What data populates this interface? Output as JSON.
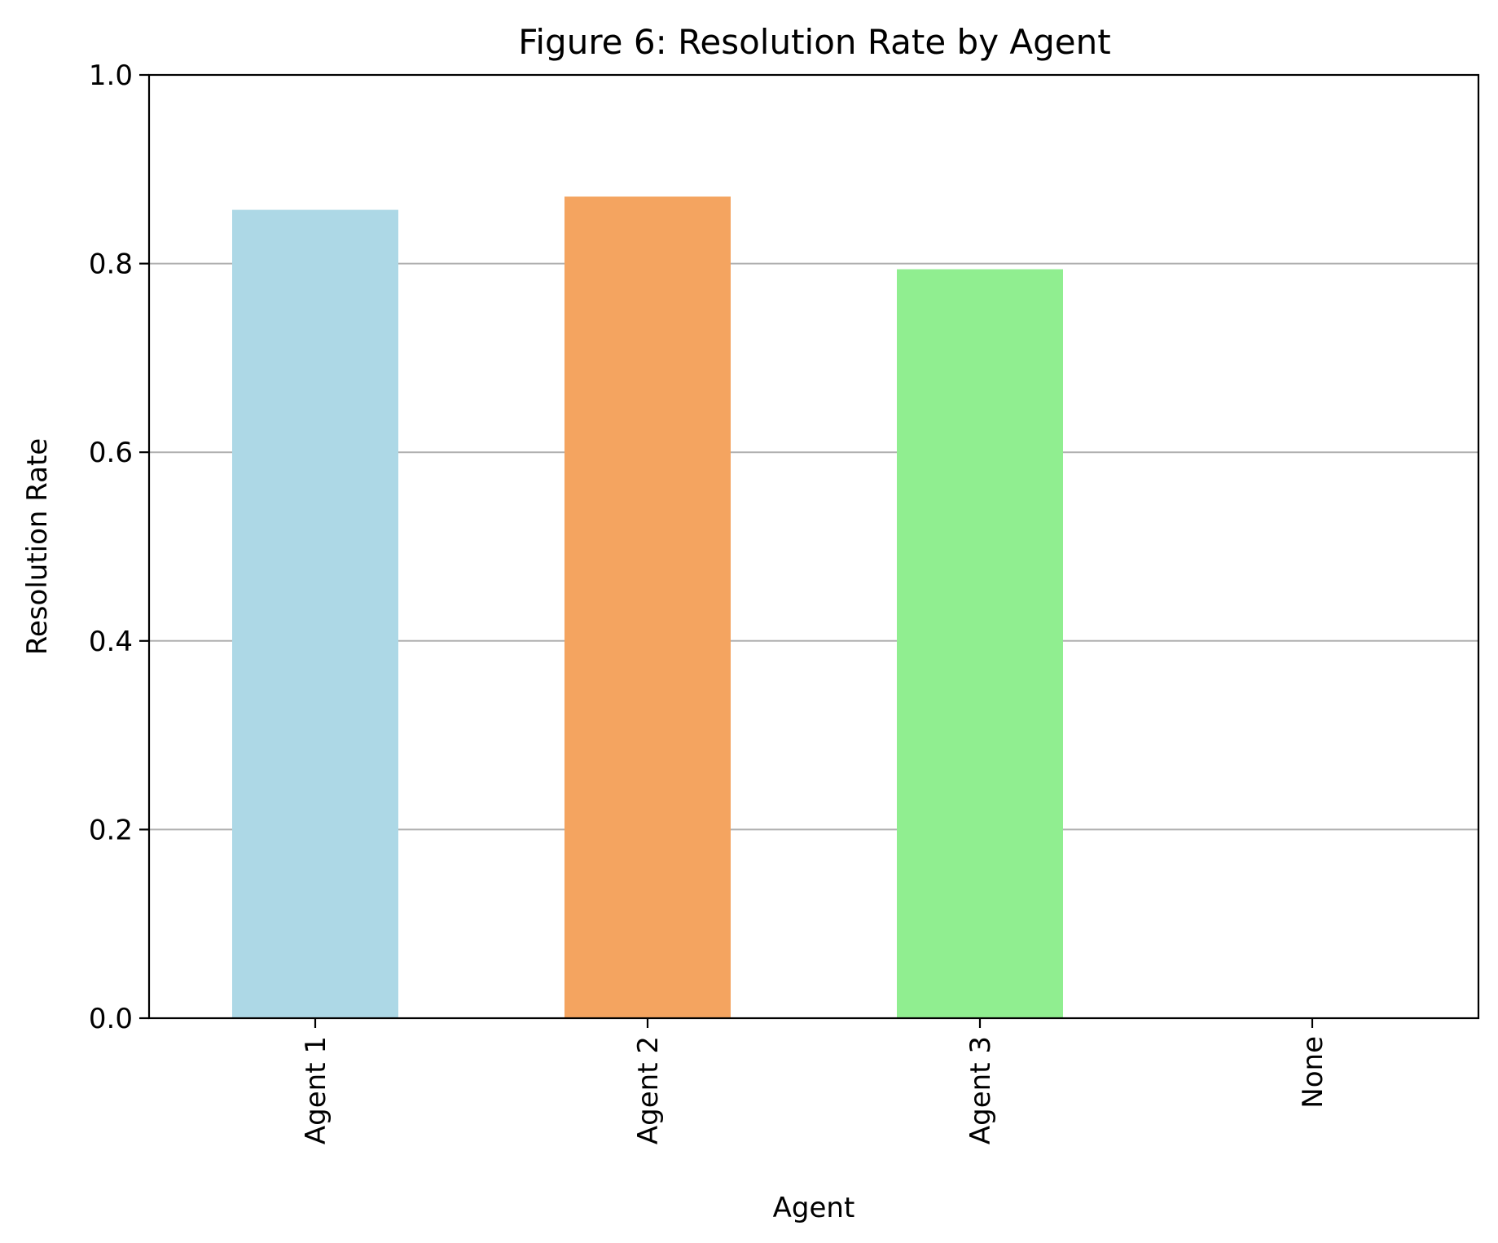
{
  "chart_data": {
    "type": "bar",
    "title": "Figure 6: Resolution Rate by Agent",
    "xlabel": "Agent",
    "ylabel": "Resolution Rate",
    "categories": [
      "Agent 1",
      "Agent 2",
      "Agent 3",
      "None"
    ],
    "values": [
      0.857,
      0.871,
      0.794,
      0
    ],
    "colors": [
      "#add8e6",
      "#f4a460",
      "#90ee90",
      "#ffffff"
    ],
    "ylim": [
      0,
      1.0
    ],
    "yticks": [
      0.0,
      0.2,
      0.4,
      0.6,
      0.8,
      1.0
    ],
    "ytick_labels": [
      "0.0",
      "0.2",
      "0.4",
      "0.6",
      "0.8",
      "1.0"
    ],
    "grid": "y-axis horizontal lines",
    "gridline_color": "#b0b0b0",
    "x_tick_rotation": "vertical"
  }
}
